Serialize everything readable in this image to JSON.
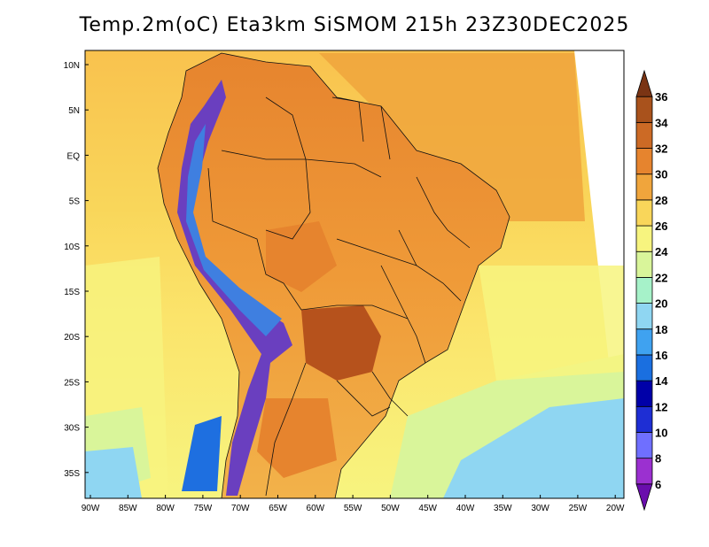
{
  "title": "Temp.2m(oC) Eta3km SiSMOM 215h 23Z30DEC2025",
  "colors": {
    "background": "#ffffff",
    "ocean_warm": "#f9d65a",
    "ocean_mid": "#fbe46b",
    "ocean_cool": "#f7f47f",
    "land_hot": "#f0a53c",
    "land_hotter": "#e6842e",
    "land_hottest": "#b6521c",
    "andes_cold": "#6a3fbf",
    "andes_blue": "#3f7fe0",
    "south_sea_green": "#d9f59a",
    "south_sea_blue": "#8fd6f2",
    "border": "#111111"
  },
  "axes": {
    "lat_labels": [
      "10N",
      "5N",
      "EQ",
      "5S",
      "10S",
      "15S",
      "20S",
      "25S",
      "30S",
      "35S"
    ],
    "lon_labels": [
      "90W",
      "85W",
      "80W",
      "75W",
      "70W",
      "65W",
      "60W",
      "55W",
      "50W",
      "45W",
      "40W",
      "35W",
      "30W",
      "25W",
      "20W"
    ]
  },
  "colorbar": {
    "colors": [
      "#6a0dad",
      "#9b30d0",
      "#6f6fff",
      "#1e2ed4",
      "#0000a8",
      "#1a6fe0",
      "#3fa2f0",
      "#8fd6f2",
      "#a6f2c9",
      "#d9f59a",
      "#f7f47f",
      "#f9d65a",
      "#f0a53c",
      "#e6842e",
      "#cc6a25",
      "#a9521c",
      "#7a3414"
    ],
    "labels": [
      "6",
      "8",
      "10",
      "12",
      "14",
      "16",
      "18",
      "20",
      "22",
      "24",
      "26",
      "28",
      "30",
      "32",
      "34",
      "36"
    ]
  }
}
